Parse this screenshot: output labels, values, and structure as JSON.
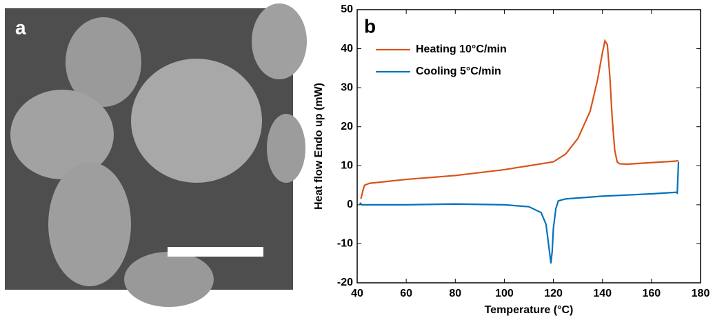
{
  "image_panel": {
    "label": "a"
  },
  "chart_data": {
    "type": "line",
    "panel_label": "b",
    "x_label": "Temperature (°C)",
    "y_label": "Heat flow Endo up (mW)",
    "xlim": [
      40,
      180
    ],
    "xticks": [
      40,
      60,
      80,
      100,
      120,
      140,
      160,
      180
    ],
    "ylim": [
      -20,
      50
    ],
    "yticks": [
      -20,
      -10,
      0,
      10,
      20,
      30,
      40,
      50
    ],
    "legend": "upper left",
    "series": [
      {
        "name": "Heating 10°C/min",
        "color": "#d95319",
        "x": [
          41.5,
          42.5,
          43,
          45,
          60,
          80,
          100,
          115,
          120,
          125,
          130,
          135,
          138,
          140,
          141,
          142,
          143,
          144,
          145,
          146,
          147,
          150,
          160,
          170,
          171
        ],
        "values": [
          1.5,
          4,
          5,
          5.5,
          6.5,
          7.5,
          9,
          10.5,
          11,
          13,
          17,
          24,
          32,
          39,
          42,
          41,
          33,
          22,
          14,
          11,
          10.5,
          10.4,
          10.8,
          11.2,
          11.3
        ]
      },
      {
        "name": "Cooling 5°C/min",
        "color": "#0072bd",
        "x": [
          171,
          170.5,
          170,
          160,
          140,
          125,
          122,
          121,
          120,
          119.5,
          119,
          118,
          117,
          115,
          110,
          100,
          80,
          60,
          45,
          42,
          41
        ],
        "values": [
          11,
          3,
          3.2,
          2.8,
          2.2,
          1.5,
          1,
          -1,
          -6,
          -12,
          -15,
          -10,
          -5,
          -2,
          -0.5,
          0,
          0.2,
          0,
          0,
          0,
          0.5
        ]
      }
    ]
  }
}
